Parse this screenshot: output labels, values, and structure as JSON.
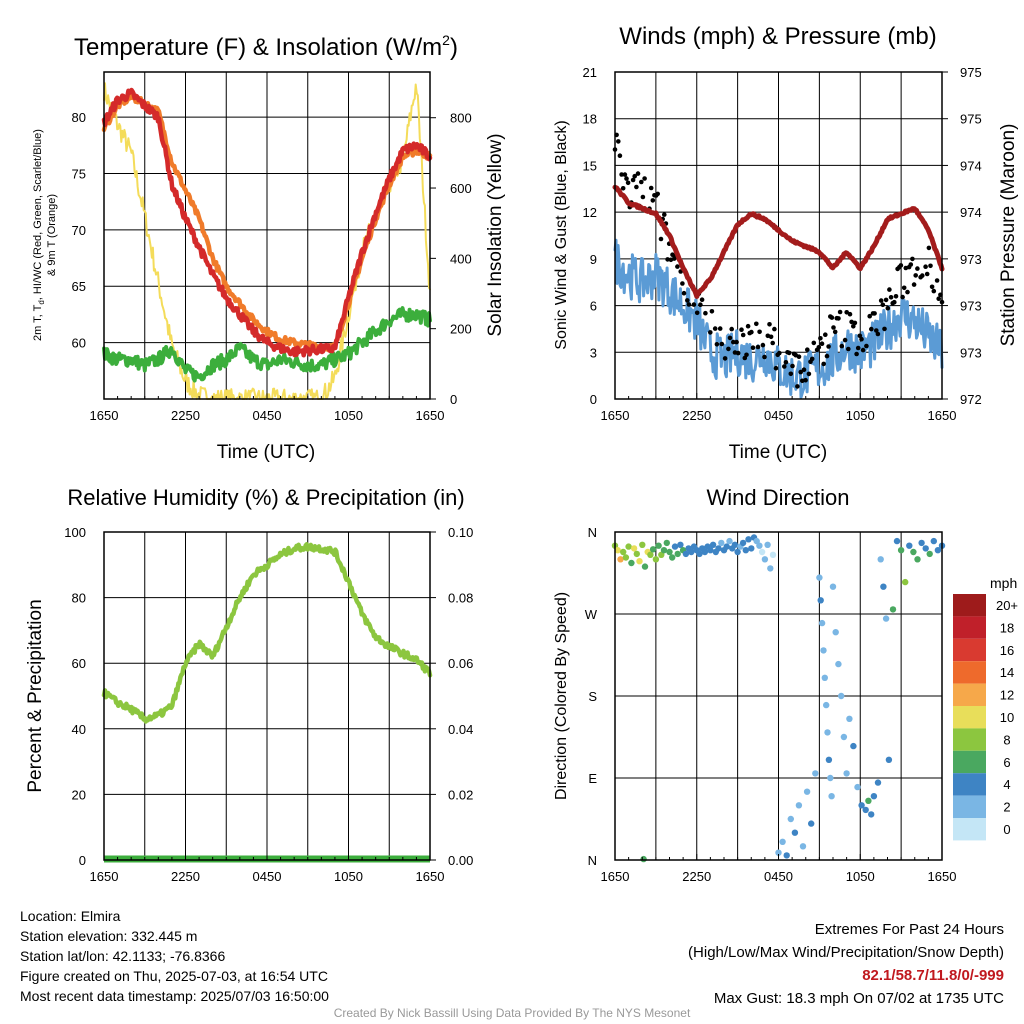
{
  "station": {
    "location": "Location: Elmira",
    "elevation": "Station elevation: 332.445 m",
    "latlon": "Station lat/lon: 42.1133; -76.8366",
    "created": "Figure created on Thu, 2025-07-03, at 16:54 UTC",
    "recent": "Most recent data timestamp: 2025/07/03 16:50:00"
  },
  "extremes": {
    "title": "Extremes For Past 24 Hours",
    "subtitle": "(High/Low/Max Wind/Precipitation/Snow Depth)",
    "values": "82.1/58.7/11.8/0/-999",
    "max_gust": "Max Gust: 18.3 mph On 07/02 at 1735 UTC"
  },
  "credit": "Created By Nick Bassill Using Data Provided By The NYS Mesonet",
  "colors": {
    "temp": "#d42a2a",
    "temp9m": "#f07b2a",
    "dewpoint": "#3cae3c",
    "insolation": "#f4dc5a",
    "wind": "#5b9bd5",
    "gust": "#000000",
    "pressure": "#a31c1c",
    "rh": "#8cc63f",
    "precip": "#3cae3c"
  },
  "chart_data": [
    {
      "type": "line",
      "title": "Temperature (F) & Insolation (W/m",
      "title_sup": "2",
      "title_end": ")",
      "xlabel": "Time (UTC)",
      "ylabel_left_1": "2m T, T",
      "ylabel_left_sub": "d",
      "ylabel_left_2": ", HI/WC (Red, Green, Scarlet/Blue)",
      "ylabel_left_3": "& 9m T (Orange)",
      "ylabel_right": "Solar Insolation (Yellow)",
      "x_ticks": [
        "1650",
        "2250",
        "0450",
        "1050",
        "1650"
      ],
      "ylim": [
        55,
        84
      ],
      "y_ticks": [
        60,
        65,
        70,
        75,
        80
      ],
      "y2lim": [
        0,
        930
      ],
      "y2_ticks": [
        0,
        200,
        400,
        600,
        800
      ],
      "x_hours": [
        0,
        1,
        2,
        3,
        4,
        5,
        6,
        7,
        8,
        9,
        10,
        11,
        12,
        13,
        14,
        15,
        16,
        17,
        18,
        19,
        20,
        21,
        22,
        23,
        24
      ],
      "series": [
        {
          "name": "2m T",
          "values": [
            79.5,
            81.5,
            82.1,
            81.0,
            80.0,
            74.0,
            71.0,
            68.5,
            66.0,
            64.0,
            62.5,
            61.0,
            60.0,
            59.5,
            59.2,
            59.3,
            59.4,
            59.5,
            64.0,
            68.0,
            71.5,
            74.5,
            77.0,
            77.5,
            76.5
          ]
        },
        {
          "name": "9m T",
          "values": [
            79.0,
            81.0,
            81.8,
            81.2,
            80.5,
            76.0,
            73.5,
            71.0,
            67.5,
            65.0,
            63.5,
            62.0,
            61.0,
            60.3,
            60.0,
            59.8,
            59.6,
            59.6,
            63.5,
            67.5,
            71.0,
            74.0,
            76.5,
            77.0,
            76.5
          ]
        },
        {
          "name": "Td",
          "values": [
            59.0,
            58.5,
            58.5,
            58.0,
            58.5,
            59.5,
            57.5,
            57.0,
            58.0,
            58.5,
            59.5,
            58.5,
            58.0,
            58.5,
            58.3,
            58.0,
            58.0,
            58.5,
            59.0,
            60.0,
            61.0,
            62.0,
            62.5,
            62.5,
            62.0
          ]
        },
        {
          "name": "Insolation",
          "axis": "right",
          "values": [
            880,
            780,
            700,
            520,
            330,
            150,
            50,
            10,
            0,
            0,
            0,
            0,
            0,
            0,
            0,
            0,
            0,
            60,
            240,
            420,
            520,
            610,
            680,
            900,
            300
          ]
        }
      ]
    },
    {
      "type": "line",
      "title": "Winds (mph) & Pressure (mb)",
      "xlabel": "Time (UTC)",
      "ylabel": "Sonic Wind & Gust (Blue, Black)",
      "ylabel_right": "Station Pressure (Maroon)",
      "x_ticks": [
        "1650",
        "2250",
        "0450",
        "1050",
        "1650"
      ],
      "ylim": [
        0,
        21
      ],
      "y_ticks": [
        0,
        3,
        6,
        9,
        12,
        15,
        18,
        21
      ],
      "y2lim": [
        972,
        975
      ],
      "y2_ticks": [
        "972",
        "973",
        "973",
        "973",
        "974",
        "974",
        "975",
        "975"
      ],
      "x_hours": [
        0,
        1,
        2,
        3,
        4,
        5,
        6,
        7,
        8,
        9,
        10,
        11,
        12,
        13,
        14,
        15,
        16,
        17,
        18,
        19,
        20,
        21,
        22,
        23,
        24
      ],
      "series": [
        {
          "name": "Sonic Wind",
          "values": [
            9.0,
            8.0,
            7.5,
            8.0,
            7.0,
            6.0,
            5.0,
            3.0,
            2.5,
            3.0,
            2.5,
            3.0,
            2.0,
            1.5,
            1.5,
            2.0,
            2.5,
            3.5,
            3.0,
            3.5,
            4.5,
            5.5,
            5.0,
            4.0,
            3.0
          ]
        },
        {
          "name": "Gust",
          "values": [
            16.5,
            13.0,
            13.5,
            12.5,
            9.5,
            8.0,
            6.5,
            4.5,
            3.5,
            4.0,
            3.5,
            4.0,
            3.0,
            2.0,
            2.0,
            3.0,
            4.5,
            4.5,
            4.0,
            4.5,
            6.0,
            7.5,
            8.5,
            9.0,
            6.5
          ]
        },
        {
          "name": "Pressure",
          "axis": "right",
          "values": [
            973.95,
            973.8,
            973.75,
            973.7,
            973.5,
            973.2,
            972.95,
            973.1,
            973.35,
            973.6,
            973.7,
            973.65,
            973.55,
            973.45,
            973.4,
            973.35,
            973.2,
            973.35,
            973.2,
            973.4,
            973.65,
            973.7,
            973.75,
            973.55,
            973.2
          ]
        }
      ]
    },
    {
      "type": "line",
      "title": "Relative Humidity (%) & Precipitation (in)",
      "ylabel": "Percent & Precipitation",
      "x_ticks": [
        "1650",
        "2250",
        "0450",
        "1050",
        "1650"
      ],
      "ylim": [
        0,
        100
      ],
      "y_ticks": [
        0,
        20,
        40,
        60,
        80,
        100
      ],
      "y2lim": [
        0,
        0.1
      ],
      "y2_ticks": [
        "0.00",
        "0.02",
        "0.04",
        "0.06",
        "0.08",
        "0.10"
      ],
      "x_hours": [
        0,
        1,
        2,
        3,
        4,
        5,
        6,
        7,
        8,
        9,
        10,
        11,
        12,
        13,
        14,
        15,
        16,
        17,
        18,
        19,
        20,
        21,
        22,
        23,
        24
      ],
      "series": [
        {
          "name": "RH",
          "values": [
            51,
            48,
            46,
            43,
            44,
            47,
            60,
            66,
            62,
            71,
            80,
            87,
            90,
            93,
            95,
            95.5,
            95,
            94,
            85,
            75,
            68,
            65,
            63,
            61,
            57
          ]
        },
        {
          "name": "Precip",
          "axis": "right",
          "values": [
            0,
            0,
            0,
            0,
            0,
            0,
            0,
            0,
            0,
            0,
            0,
            0,
            0,
            0,
            0,
            0,
            0,
            0,
            0,
            0,
            0,
            0,
            0,
            0,
            0
          ]
        }
      ]
    },
    {
      "type": "scatter",
      "title": "Wind Direction",
      "ylabel": "Direction (Colored By Speed)",
      "x_ticks": [
        "1650",
        "2250",
        "0450",
        "1050",
        "1650"
      ],
      "y_ticks": [
        "N",
        "E",
        "S",
        "W",
        "N"
      ],
      "ylim": [
        0,
        360
      ],
      "colorbar": {
        "title": "mph",
        "labels": [
          "20+",
          "18",
          "16",
          "14",
          "12",
          "10",
          "8",
          "6",
          "4",
          "2",
          "0"
        ],
        "colors": [
          "#9e1b1b",
          "#c0202a",
          "#d93a30",
          "#ee6a2c",
          "#f6a84a",
          "#e8de5a",
          "#8cc63f",
          "#4aa860",
          "#3e84c4",
          "#7ab6e4",
          "#c4e6f6"
        ]
      },
      "points": [
        {
          "t": 0.0,
          "dir": 345,
          "spd": 8
        },
        {
          "t": 0.2,
          "dir": 340,
          "spd": 9
        },
        {
          "t": 0.4,
          "dir": 330,
          "spd": 12
        },
        {
          "t": 0.6,
          "dir": 338,
          "spd": 8
        },
        {
          "t": 0.8,
          "dir": 332,
          "spd": 7
        },
        {
          "t": 1.0,
          "dir": 344,
          "spd": 8
        },
        {
          "t": 1.2,
          "dir": 326,
          "spd": 6
        },
        {
          "t": 1.4,
          "dir": 342,
          "spd": 10
        },
        {
          "t": 1.6,
          "dir": 336,
          "spd": 7
        },
        {
          "t": 1.8,
          "dir": 328,
          "spd": 9
        },
        {
          "t": 2.0,
          "dir": 346,
          "spd": 8
        },
        {
          "t": 2.1,
          "dir": 1,
          "spd": 6
        },
        {
          "t": 2.2,
          "dir": 322,
          "spd": 6
        },
        {
          "t": 2.4,
          "dir": 338,
          "spd": 9
        },
        {
          "t": 2.6,
          "dir": 335,
          "spd": 7
        },
        {
          "t": 2.8,
          "dir": 341,
          "spd": 5
        },
        {
          "t": 3.0,
          "dir": 330,
          "spd": 8
        },
        {
          "t": 3.2,
          "dir": 345,
          "spd": 6
        },
        {
          "t": 3.4,
          "dir": 335,
          "spd": 7
        },
        {
          "t": 3.6,
          "dir": 340,
          "spd": 5
        },
        {
          "t": 3.8,
          "dir": 348,
          "spd": 6
        },
        {
          "t": 4.0,
          "dir": 338,
          "spd": 5
        },
        {
          "t": 4.2,
          "dir": 332,
          "spd": 6
        },
        {
          "t": 4.4,
          "dir": 344,
          "spd": 4
        },
        {
          "t": 4.6,
          "dir": 336,
          "spd": 5
        },
        {
          "t": 4.8,
          "dir": 346,
          "spd": 4
        },
        {
          "t": 5.0,
          "dir": 340,
          "spd": 5
        },
        {
          "t": 5.2,
          "dir": 336,
          "spd": 4
        },
        {
          "t": 5.4,
          "dir": 342,
          "spd": 3
        },
        {
          "t": 5.6,
          "dir": 338,
          "spd": 4
        },
        {
          "t": 5.8,
          "dir": 344,
          "spd": 4
        },
        {
          "t": 6.0,
          "dir": 340,
          "spd": 3
        },
        {
          "t": 6.2,
          "dir": 336,
          "spd": 4
        },
        {
          "t": 6.4,
          "dir": 342,
          "spd": 3
        },
        {
          "t": 6.6,
          "dir": 338,
          "spd": 4
        },
        {
          "t": 6.8,
          "dir": 344,
          "spd": 3
        },
        {
          "t": 7.0,
          "dir": 340,
          "spd": 4
        },
        {
          "t": 7.2,
          "dir": 346,
          "spd": 3
        },
        {
          "t": 7.4,
          "dir": 338,
          "spd": 4
        },
        {
          "t": 7.6,
          "dir": 342,
          "spd": 3
        },
        {
          "t": 7.8,
          "dir": 348,
          "spd": 2
        },
        {
          "t": 8.0,
          "dir": 340,
          "spd": 3
        },
        {
          "t": 8.2,
          "dir": 344,
          "spd": 4
        },
        {
          "t": 8.4,
          "dir": 350,
          "spd": 2
        },
        {
          "t": 8.6,
          "dir": 342,
          "spd": 3
        },
        {
          "t": 8.8,
          "dir": 346,
          "spd": 4
        },
        {
          "t": 9.0,
          "dir": 338,
          "spd": 3
        },
        {
          "t": 9.2,
          "dir": 344,
          "spd": 2
        },
        {
          "t": 9.4,
          "dir": 348,
          "spd": 3
        },
        {
          "t": 9.6,
          "dir": 340,
          "spd": 4
        },
        {
          "t": 9.8,
          "dir": 352,
          "spd": 3
        },
        {
          "t": 10.0,
          "dir": 342,
          "spd": 4
        },
        {
          "t": 10.2,
          "dir": 354,
          "spd": 3
        },
        {
          "t": 10.4,
          "dir": 350,
          "spd": 2
        },
        {
          "t": 10.6,
          "dir": 345,
          "spd": 1
        },
        {
          "t": 10.8,
          "dir": 338,
          "spd": 0
        },
        {
          "t": 11.0,
          "dir": 330,
          "spd": 1
        },
        {
          "t": 11.2,
          "dir": 346,
          "spd": 2
        },
        {
          "t": 11.4,
          "dir": 320,
          "spd": 1
        },
        {
          "t": 11.6,
          "dir": 335,
          "spd": 0
        },
        {
          "t": 12.0,
          "dir": 8,
          "spd": 1
        },
        {
          "t": 12.3,
          "dir": 20,
          "spd": 2
        },
        {
          "t": 12.6,
          "dir": 5,
          "spd": 3
        },
        {
          "t": 12.9,
          "dir": 45,
          "spd": 2
        },
        {
          "t": 13.2,
          "dir": 30,
          "spd": 3
        },
        {
          "t": 13.5,
          "dir": 60,
          "spd": 1
        },
        {
          "t": 13.8,
          "dir": 15,
          "spd": 2
        },
        {
          "t": 14.1,
          "dir": 75,
          "spd": 2
        },
        {
          "t": 14.4,
          "dir": 40,
          "spd": 3
        },
        {
          "t": 14.7,
          "dir": 95,
          "spd": 1
        },
        {
          "t": 15.0,
          "dir": 310,
          "spd": 2
        },
        {
          "t": 15.1,
          "dir": 285,
          "spd": 3
        },
        {
          "t": 15.2,
          "dir": 260,
          "spd": 2
        },
        {
          "t": 15.3,
          "dir": 230,
          "spd": 1
        },
        {
          "t": 15.4,
          "dir": 200,
          "spd": 2
        },
        {
          "t": 15.5,
          "dir": 170,
          "spd": 1
        },
        {
          "t": 15.6,
          "dir": 140,
          "spd": 2
        },
        {
          "t": 15.7,
          "dir": 110,
          "spd": 3
        },
        {
          "t": 15.8,
          "dir": 90,
          "spd": 2
        },
        {
          "t": 15.9,
          "dir": 70,
          "spd": 1
        },
        {
          "t": 16.0,
          "dir": 300,
          "spd": 2
        },
        {
          "t": 16.2,
          "dir": 250,
          "spd": 1
        },
        {
          "t": 16.4,
          "dir": 215,
          "spd": 2
        },
        {
          "t": 16.6,
          "dir": 180,
          "spd": 1
        },
        {
          "t": 16.8,
          "dir": 135,
          "spd": 2
        },
        {
          "t": 17.0,
          "dir": 95,
          "spd": 1
        },
        {
          "t": 17.2,
          "dir": 155,
          "spd": 2
        },
        {
          "t": 17.5,
          "dir": 125,
          "spd": 3
        },
        {
          "t": 17.8,
          "dir": 80,
          "spd": 2
        },
        {
          "t": 18.1,
          "dir": 60,
          "spd": 4
        },
        {
          "t": 18.4,
          "dir": 55,
          "spd": 4
        },
        {
          "t": 18.6,
          "dir": 65,
          "spd": 5
        },
        {
          "t": 18.8,
          "dir": 50,
          "spd": 4
        },
        {
          "t": 19.0,
          "dir": 70,
          "spd": 3
        },
        {
          "t": 19.3,
          "dir": 85,
          "spd": 4
        },
        {
          "t": 19.5,
          "dir": 330,
          "spd": 2
        },
        {
          "t": 19.7,
          "dir": 300,
          "spd": 3
        },
        {
          "t": 19.9,
          "dir": 265,
          "spd": 2
        },
        {
          "t": 20.1,
          "dir": 110,
          "spd": 4
        },
        {
          "t": 20.4,
          "dir": 275,
          "spd": 6
        },
        {
          "t": 20.7,
          "dir": 350,
          "spd": 4
        },
        {
          "t": 21.0,
          "dir": 340,
          "spd": 6
        },
        {
          "t": 21.3,
          "dir": 305,
          "spd": 7
        },
        {
          "t": 21.6,
          "dir": 345,
          "spd": 4
        },
        {
          "t": 21.9,
          "dir": 338,
          "spd": 5
        },
        {
          "t": 22.2,
          "dir": 330,
          "spd": 6
        },
        {
          "t": 22.5,
          "dir": 348,
          "spd": 4
        },
        {
          "t": 22.8,
          "dir": 342,
          "spd": 3
        },
        {
          "t": 23.1,
          "dir": 336,
          "spd": 5
        },
        {
          "t": 23.4,
          "dir": 350,
          "spd": 4
        },
        {
          "t": 23.7,
          "dir": 340,
          "spd": 3
        },
        {
          "t": 24.0,
          "dir": 345,
          "spd": 4
        }
      ]
    }
  ]
}
